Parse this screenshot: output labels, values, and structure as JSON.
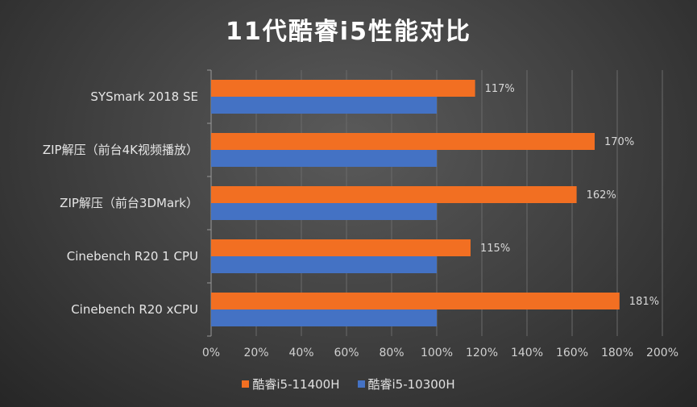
{
  "chart_data": {
    "type": "bar",
    "orientation": "horizontal",
    "title": "11代酷睿i5性能对比",
    "categories": [
      "SYSmark 2018 SE",
      "ZIP解压（前台4K视频播放）",
      "ZIP解压（前台3DMark）",
      "Cinebench R20 1 CPU",
      "Cinebench R20 xCPU"
    ],
    "series": [
      {
        "name": "酷睿i5-11400H",
        "values": [
          117,
          170,
          162,
          115,
          181
        ],
        "labels": [
          "117%",
          "170%",
          "162%",
          "115%",
          "181%"
        ],
        "color": "#f26f22"
      },
      {
        "name": "酷睿i5-10300H",
        "values": [
          100,
          100,
          100,
          100,
          100
        ],
        "color": "#4472c4"
      }
    ],
    "xlim": [
      0,
      200
    ],
    "xticks": [
      "0%",
      "20%",
      "40%",
      "60%",
      "80%",
      "100%",
      "120%",
      "140%",
      "160%",
      "180%",
      "200%"
    ],
    "grid": true,
    "legend_position": "bottom"
  }
}
